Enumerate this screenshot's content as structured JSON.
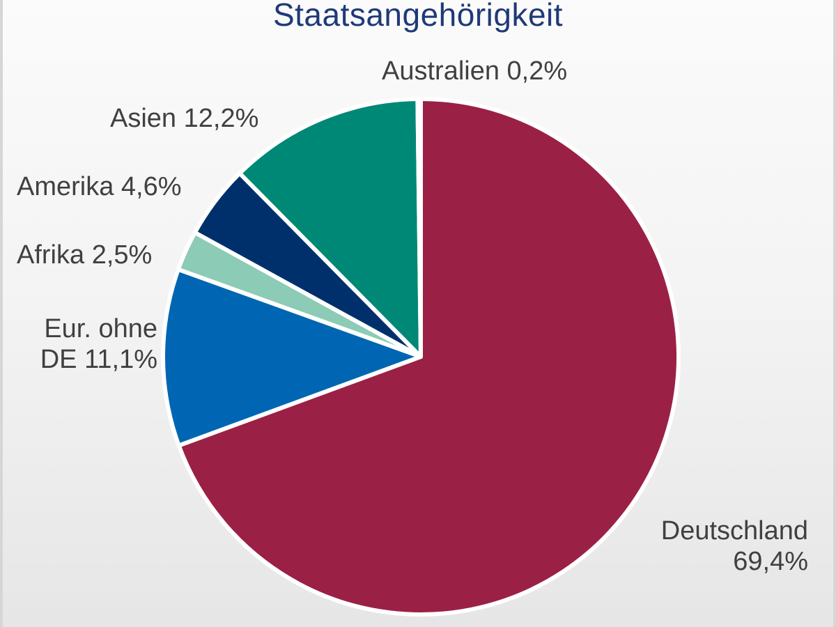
{
  "chart_data": {
    "type": "pie",
    "title": "Staatsangehörigkeit",
    "start_angle_deg": 0,
    "direction": "clockwise",
    "slices": [
      {
        "label": "Deutschland",
        "value": 69.4,
        "display": "69,4%",
        "color": "#9b2045"
      },
      {
        "label": "Eur. ohne DE",
        "value": 11.1,
        "display": "11,1%",
        "color": "#0066b3"
      },
      {
        "label": "Afrika",
        "value": 2.5,
        "display": "2,5%",
        "color": "#8ccbb5"
      },
      {
        "label": "Amerika",
        "value": 4.6,
        "display": "4,6%",
        "color": "#00306c"
      },
      {
        "label": "Asien",
        "value": 12.2,
        "display": "12,2%",
        "color": "#008876"
      },
      {
        "label": "Australien",
        "value": 0.2,
        "display": "0,2%",
        "color": "#6d3f7a"
      }
    ],
    "categories": [
      "Deutschland",
      "Eur. ohne DE",
      "Afrika",
      "Amerika",
      "Asien",
      "Australien"
    ],
    "values": [
      69.4,
      11.1,
      2.5,
      4.6,
      12.2,
      0.2
    ],
    "legend": "none (data labels with category name and percentage)"
  },
  "labels": {
    "deutschland_line1": "Deutschland",
    "deutschland_line2": "69,4%",
    "europa_line1": "Eur. ohne",
    "europa_line2": "DE 11,1%",
    "afrika": "Afrika 2,5%",
    "amerika": "Amerika 4,6%",
    "asien": "Asien 12,2%",
    "australien": "Australien 0,2%"
  }
}
